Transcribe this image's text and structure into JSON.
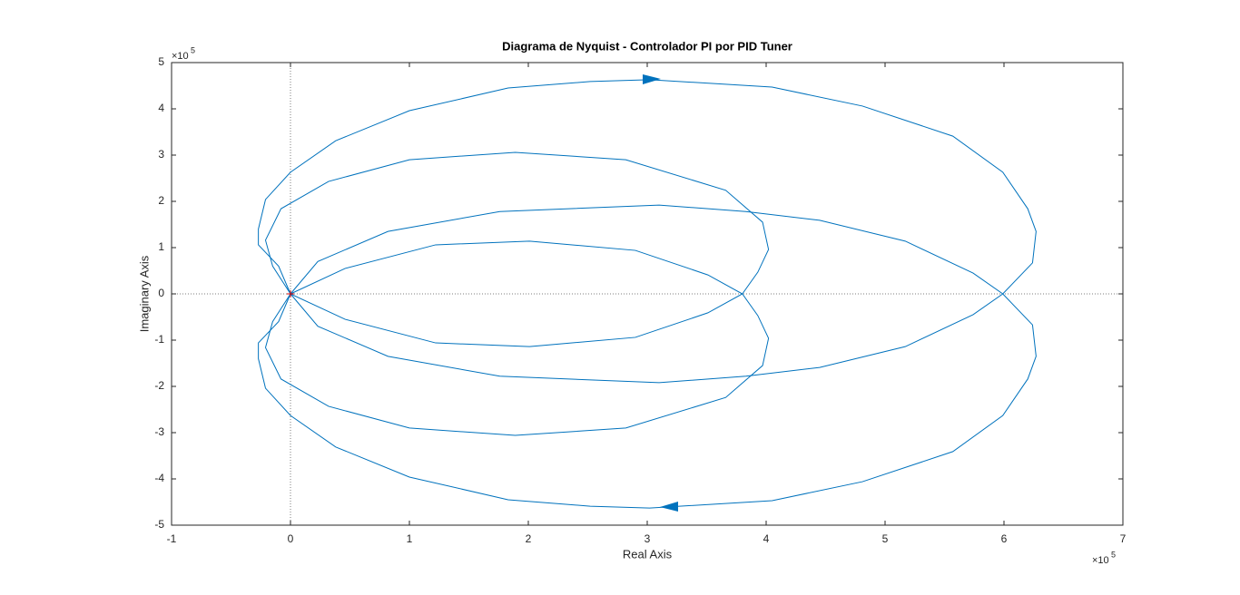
{
  "chart_data": {
    "type": "line",
    "title": "Diagrama de Nyquist - Controlador PI por PID Tuner",
    "x_label": "Real Axis",
    "y_label": "Imaginary Axis",
    "x_multiplier": {
      "base": "×10",
      "exponent": "5"
    },
    "y_multiplier": {
      "base": "×10",
      "exponent": "5"
    },
    "xlim": [
      -1,
      7
    ],
    "xticks": [
      -1,
      0,
      1,
      2,
      3,
      4,
      5,
      6,
      7
    ],
    "ylim": [
      -5,
      5
    ],
    "yticks": [
      -5,
      -4,
      -3,
      -2,
      -1,
      0,
      1,
      2,
      3,
      4,
      5
    ],
    "grid": false,
    "zero_lines": true,
    "series": [
      {
        "color": "#0072bd",
        "x": [
          0,
          -0.1,
          -0.27,
          -0.27,
          -0.21,
          0,
          0.38,
          1.0,
          1.83,
          2.52,
          3.02,
          4.05,
          4.81,
          5.57,
          5.99,
          6.2,
          6.27,
          6.24,
          5.99,
          5.74,
          5.17,
          4.45,
          3.83,
          3.1,
          1.76,
          0.82,
          0.23,
          0,
          -0.1,
          -0.27,
          -0.27,
          -0.21,
          0,
          0.38,
          1.0,
          1.83,
          2.52,
          3.02,
          4.05,
          4.81,
          5.57,
          5.99,
          6.2,
          6.27,
          6.24,
          5.99,
          5.74,
          5.17,
          4.45,
          3.83,
          3.1,
          1.76,
          0.82,
          0.23,
          0
        ],
        "y": [
          0,
          0.6,
          1.06,
          1.4,
          2.04,
          2.63,
          3.31,
          3.96,
          4.45,
          4.59,
          4.63,
          4.47,
          4.06,
          3.41,
          2.63,
          1.84,
          1.35,
          0.67,
          0,
          -0.45,
          -1.14,
          -1.59,
          -1.78,
          -1.92,
          -1.78,
          -1.35,
          -0.7,
          0,
          -0.6,
          -1.06,
          -1.4,
          -2.04,
          -2.63,
          -3.31,
          -3.96,
          -4.45,
          -4.59,
          -4.63,
          -4.47,
          -4.06,
          -3.41,
          -2.63,
          -1.84,
          -1.35,
          -0.67,
          0,
          0.45,
          1.14,
          1.59,
          1.78,
          1.92,
          1.78,
          1.35,
          0.7,
          0
        ]
      },
      {
        "color": "#0072bd",
        "x": [
          0,
          -0.15,
          -0.21,
          -0.08,
          0.32,
          1.0,
          1.89,
          2.82,
          3.66,
          3.97,
          4.02,
          3.93,
          3.8,
          3.51,
          2.9,
          2.01,
          1.22,
          0.46,
          0,
          -0.15,
          -0.21,
          -0.08,
          0.32,
          1.0,
          1.89,
          2.82,
          3.66,
          3.97,
          4.02,
          3.93,
          3.8,
          3.51,
          2.9,
          2.01,
          1.22,
          0.46,
          0
        ],
        "y": [
          0,
          0.6,
          1.16,
          1.84,
          2.43,
          2.9,
          3.06,
          2.9,
          2.24,
          1.55,
          0.96,
          0.47,
          0,
          -0.41,
          -0.94,
          -1.14,
          -1.06,
          -0.55,
          0,
          -0.6,
          -1.16,
          -1.84,
          -2.43,
          -2.9,
          -3.06,
          -2.9,
          -2.24,
          -1.55,
          -0.96,
          -0.47,
          0,
          0.41,
          0.94,
          1.14,
          1.06,
          0.55,
          0
        ]
      }
    ]
  }
}
